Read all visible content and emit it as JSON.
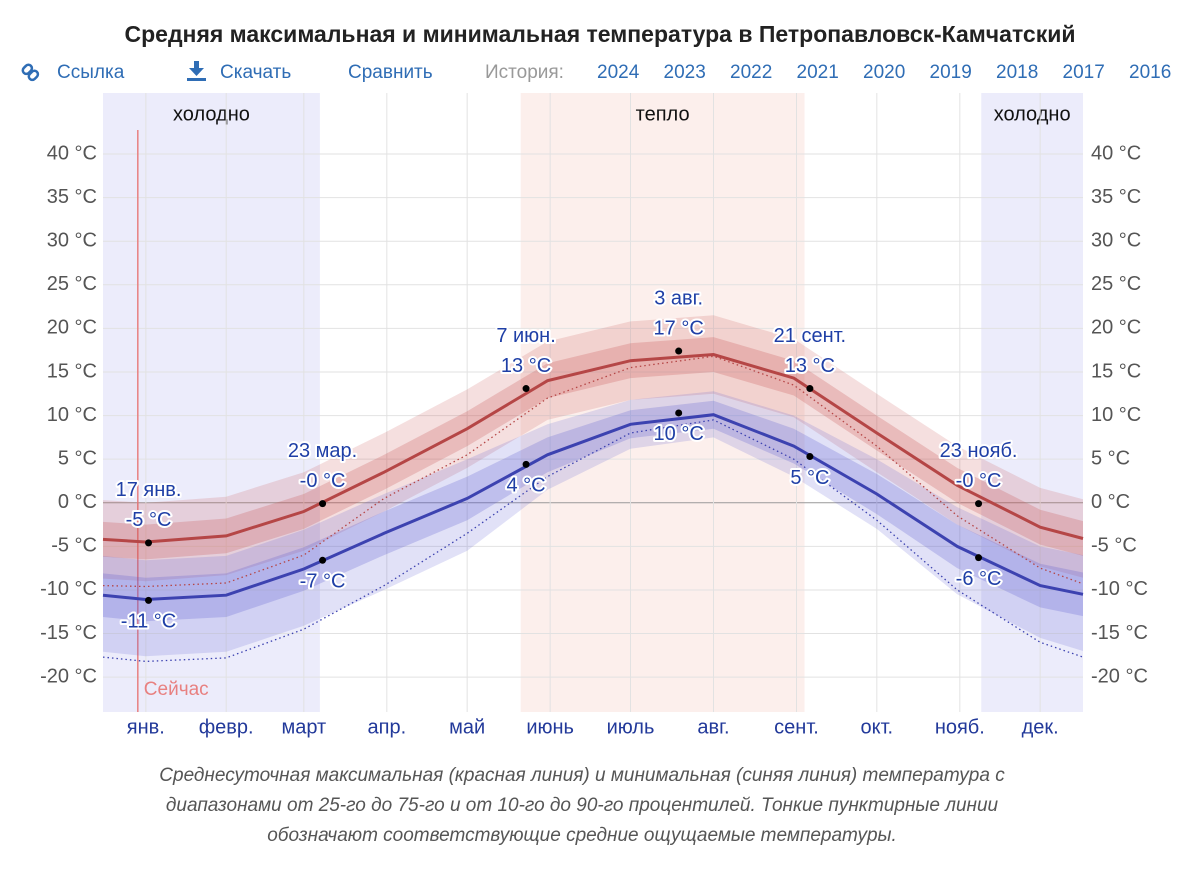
{
  "toolbar": {
    "links": [
      "Ссылка",
      "Скачать",
      "Сравнить"
    ],
    "history_label": "История:",
    "years": [
      "2024",
      "2023",
      "2022",
      "2021",
      "2020",
      "2019",
      "2018",
      "2017",
      "2016"
    ]
  },
  "chart_data": {
    "type": "line",
    "title": "Средняя максимальная и минимальная температура в Петропавловск-Камчатский",
    "x": [
      0,
      16,
      46,
      75,
      105,
      136,
      166,
      197,
      228,
      258,
      289,
      319,
      350,
      366
    ],
    "xlim": [
      0,
      366
    ],
    "xticks": [
      {
        "value": 16,
        "label": "янв."
      },
      {
        "value": 46,
        "label": "февр."
      },
      {
        "value": 75,
        "label": "март"
      },
      {
        "value": 106,
        "label": "апр."
      },
      {
        "value": 136,
        "label": "май"
      },
      {
        "value": 167,
        "label": "июнь"
      },
      {
        "value": 197,
        "label": "июль"
      },
      {
        "value": 228,
        "label": "авг."
      },
      {
        "value": 259,
        "label": "сент."
      },
      {
        "value": 289,
        "label": "окт."
      },
      {
        "value": 320,
        "label": "нояб."
      },
      {
        "value": 350,
        "label": "дек."
      }
    ],
    "ylim": [
      -24,
      47
    ],
    "yticks": [
      {
        "value": -20,
        "label": "-20 °C"
      },
      {
        "value": -15,
        "label": "-15 °C"
      },
      {
        "value": -10,
        "label": "-10 °C"
      },
      {
        "value": -5,
        "label": "-5 °C"
      },
      {
        "value": 0,
        "label": "0 °C"
      },
      {
        "value": 5,
        "label": "5 °C"
      },
      {
        "value": 10,
        "label": "10 °C"
      },
      {
        "value": 15,
        "label": "15 °C"
      },
      {
        "value": 20,
        "label": "20 °C"
      },
      {
        "value": 25,
        "label": "25 °C"
      },
      {
        "value": 30,
        "label": "30 °C"
      },
      {
        "value": 35,
        "label": "35 °C"
      },
      {
        "value": 40,
        "label": "40 °C"
      }
    ],
    "grid": true,
    "seasons": [
      {
        "label": "холодно",
        "start": 0,
        "end": 81,
        "color": "#ececfb"
      },
      {
        "label": "тепло",
        "start": 156,
        "end": 262,
        "color": "#fcefec"
      },
      {
        "label": "холодно",
        "start": 328,
        "end": 366,
        "color": "#ececfb"
      }
    ],
    "now": {
      "label": "Сейчас",
      "x": 13,
      "color": "#e88080"
    },
    "series": [
      {
        "color": "#b54646",
        "band_color": "#c85050",
        "values": [
          -4.2,
          -4.5,
          -3.8,
          -1.0,
          3.5,
          8.5,
          14.0,
          16.3,
          17.0,
          14.3,
          8.0,
          2.0,
          -2.8,
          -4.1
        ],
        "p25": [
          -6.2,
          -6.5,
          -5.8,
          -3.0,
          1.5,
          6.5,
          12.0,
          14.3,
          15.0,
          12.3,
          6.0,
          0.0,
          -4.8,
          -6.1
        ],
        "p75": [
          -2.2,
          -2.5,
          -1.8,
          1.0,
          5.5,
          10.5,
          16.0,
          18.3,
          19.0,
          16.3,
          10.0,
          4.0,
          -0.8,
          -2.1
        ],
        "p10": [
          -8.7,
          -9.0,
          -8.3,
          -5.5,
          -1.0,
          4.0,
          9.5,
          11.8,
          12.5,
          9.8,
          3.5,
          -2.5,
          -7.3,
          -8.6
        ],
        "p90": [
          0.3,
          0.0,
          0.7,
          3.5,
          8.0,
          13.0,
          18.5,
          20.8,
          21.5,
          18.8,
          12.5,
          6.5,
          1.7,
          0.4
        ],
        "feels_like": [
          -9.5,
          -9.6,
          -9.2,
          -6.0,
          0.5,
          5.5,
          12.0,
          15.5,
          16.8,
          13.5,
          6.5,
          -1.5,
          -7.5,
          -9.3
        ],
        "annotations": [
          {
            "x": 17,
            "date": "17 янв.",
            "value": -4.6,
            "value_label": "-5 °C"
          },
          {
            "x": 82,
            "date": "23 мар.",
            "value": -0.1,
            "value_label": "-0 °C"
          },
          {
            "x": 158,
            "date": "7 июн.",
            "value": 13.1,
            "value_label": "13 °C"
          },
          {
            "x": 215,
            "date": "3 авг.",
            "value": 17.4,
            "value_label": "17 °C"
          },
          {
            "x": 264,
            "date": "21 сент.",
            "value": 13.1,
            "value_label": "13 °C"
          },
          {
            "x": 327,
            "date": "23 нояб.",
            "value": -0.1,
            "value_label": "-0 °C"
          }
        ]
      },
      {
        "color": "#3c42b0",
        "band_color": "#5a5ad0",
        "values": [
          -10.6,
          -11.1,
          -10.6,
          -7.6,
          -3.5,
          0.5,
          5.5,
          9.0,
          10.1,
          6.5,
          1.0,
          -5.0,
          -9.5,
          -10.5
        ],
        "p25": [
          -13.1,
          -13.6,
          -13.1,
          -10.1,
          -6.0,
          -2.0,
          3.5,
          7.4,
          8.5,
          4.5,
          -1.3,
          -7.5,
          -12.0,
          -13.0
        ],
        "p75": [
          -8.1,
          -8.6,
          -8.1,
          -5.1,
          -1.0,
          3.0,
          7.5,
          10.6,
          11.7,
          8.5,
          3.3,
          -2.5,
          -7.0,
          -8.0
        ],
        "p10": [
          -17.1,
          -17.6,
          -17.1,
          -14.1,
          -10.0,
          -5.5,
          1.5,
          6.2,
          7.5,
          3.0,
          -3.0,
          -10.5,
          -15.5,
          -17.0
        ],
        "p90": [
          -6.1,
          -6.6,
          -6.1,
          -3.1,
          1.0,
          5.0,
          9.0,
          11.8,
          12.8,
          10.0,
          5.0,
          -0.5,
          -5.0,
          -6.0
        ],
        "feels_like": [
          -17.7,
          -18.2,
          -17.8,
          -14.5,
          -9.5,
          -3.5,
          3.0,
          8.0,
          9.5,
          5.0,
          -2.0,
          -10.0,
          -16.0,
          -17.7
        ],
        "annotations": [
          {
            "x": 17,
            "value": -11.2,
            "value_label": "-11 °C"
          },
          {
            "x": 82,
            "value": -6.6,
            "value_label": "-7 °C"
          },
          {
            "x": 158,
            "value": 4.4,
            "value_label": "4 °C"
          },
          {
            "x": 215,
            "value": 10.3,
            "value_label": "10 °C"
          },
          {
            "x": 264,
            "value": 5.3,
            "value_label": "5 °C"
          },
          {
            "x": 327,
            "value": -6.3,
            "value_label": "-6 °C"
          }
        ]
      }
    ],
    "caption": [
      "Среднесуточная максимальная (красная линия) и минимальная (синяя линия) температура с",
      "диапазонами от 25-го до 75-го и от 10-го до 90-го процентилей. Тонкие пунктирные линии",
      "обозначают соответствующие средние ощущаемые температуры."
    ]
  }
}
